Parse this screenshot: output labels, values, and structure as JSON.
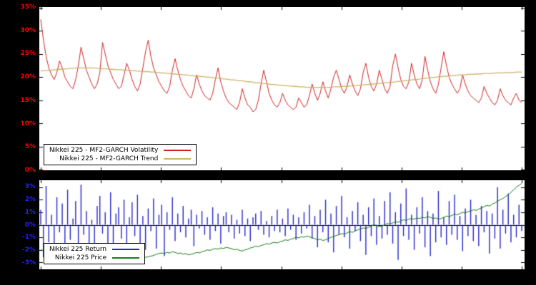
{
  "figure": {
    "background": "#000000",
    "plot_background": "#ffffff"
  },
  "chart_data": [
    {
      "type": "line",
      "panel": "volatility",
      "ylim": [
        0,
        35
      ],
      "axis_color": "#ff0000",
      "grid": false,
      "legend_position": "bottom-left",
      "yticks": [
        {
          "value": 0,
          "label": "0%"
        },
        {
          "value": 5,
          "label": "5%"
        },
        {
          "value": 10,
          "label": "10%"
        },
        {
          "value": 15,
          "label": "15%"
        },
        {
          "value": 20,
          "label": "20%"
        },
        {
          "value": 25,
          "label": "25%"
        },
        {
          "value": 30,
          "label": "30%"
        },
        {
          "value": 35,
          "label": "35%"
        }
      ],
      "series": [
        {
          "name": "Nikkei 225 - MF2-GARCH Volatility",
          "style": "line",
          "color": "#d02525",
          "width": 1,
          "values": [
            32.5,
            28,
            24.5,
            22,
            20.5,
            19.5,
            21,
            23.5,
            22,
            20,
            19,
            18,
            17.5,
            19.5,
            22.5,
            26.5,
            24,
            21.5,
            20,
            18.5,
            17.5,
            18.5,
            21,
            27.5,
            25,
            22.5,
            21,
            19.5,
            18.5,
            17.5,
            18,
            20.5,
            23,
            21.5,
            19.5,
            18,
            17,
            18.5,
            22,
            25.5,
            28,
            24.5,
            22,
            20.5,
            19,
            18,
            17,
            16.5,
            18,
            21.5,
            24,
            21.5,
            19.5,
            18,
            17,
            16,
            15.5,
            17.5,
            20.5,
            18.5,
            17,
            16,
            15.5,
            15,
            16.5,
            19.5,
            22,
            19,
            17,
            15.5,
            14.5,
            14,
            13.5,
            13,
            14.5,
            17.5,
            15.5,
            14,
            13.5,
            12.5,
            13,
            15,
            18.5,
            21.5,
            19,
            16.5,
            15,
            14,
            13.5,
            14.5,
            16.5,
            15,
            14,
            13.5,
            13,
            13.5,
            15.5,
            14.5,
            13.5,
            14,
            16,
            18.5,
            16.5,
            15,
            16.5,
            19,
            17,
            15.5,
            17.5,
            20,
            21.5,
            19.5,
            17.5,
            16.5,
            18,
            20.5,
            18.5,
            17,
            16,
            17.5,
            21,
            23,
            20,
            18,
            17,
            18.5,
            21.5,
            19.5,
            17.5,
            16.5,
            18,
            22.5,
            25,
            22,
            19.5,
            18,
            17.5,
            19,
            23,
            20.5,
            18.5,
            17.5,
            19.5,
            24.5,
            21.5,
            19,
            17.5,
            16.5,
            18.5,
            22,
            25.5,
            22.5,
            20,
            18.5,
            17.5,
            16.5,
            17.5,
            20.5,
            18.5,
            17,
            16,
            15.5,
            15,
            14.5,
            15.5,
            18,
            16.5,
            15.5,
            14.5,
            14,
            15,
            17.5,
            16,
            15,
            14.5,
            14,
            15.5,
            16.5,
            15,
            14.5
          ]
        },
        {
          "name": "Nikkei 225 - MF2-GARCH Trend",
          "style": "line",
          "color": "#cdb36b",
          "width": 1.3,
          "values": [
            21.3,
            21.4,
            21.4,
            21.5,
            21.5,
            21.6,
            21.6,
            21.7,
            21.7,
            21.8,
            21.8,
            21.9,
            21.9,
            22,
            22,
            22,
            22,
            22,
            22,
            22,
            22,
            21.9,
            21.9,
            21.8,
            21.8,
            21.8,
            21.7,
            21.7,
            21.6,
            21.6,
            21.6,
            21.5,
            21.5,
            21.5,
            21.4,
            21.4,
            21.3,
            21.3,
            21.2,
            21.2,
            21.2,
            21.1,
            21.1,
            21,
            21,
            20.9,
            20.9,
            20.8,
            20.8,
            20.7,
            20.7,
            20.6,
            20.6,
            20.5,
            20.5,
            20.4,
            20.4,
            20.3,
            20.2,
            20.2,
            20.1,
            20.1,
            20,
            20,
            19.9,
            19.8,
            19.8,
            19.7,
            19.6,
            19.6,
            19.5,
            19.4,
            19.4,
            19.3,
            19.2,
            19.2,
            19.1,
            19,
            19,
            18.9,
            18.8,
            18.8,
            18.7,
            18.6,
            18.6,
            18.5,
            18.4,
            18.4,
            18.3,
            18.3,
            18.2,
            18.2,
            18.1,
            18.1,
            18,
            18,
            17.9,
            17.9,
            17.9,
            17.8,
            17.8,
            17.8,
            17.8,
            17.8,
            17.8,
            17.8,
            17.8,
            17.8,
            17.8,
            17.9,
            17.9,
            17.9,
            18,
            18,
            18,
            18.1,
            18.1,
            18.2,
            18.2,
            18.3,
            18.3,
            18.4,
            18.4,
            18.5,
            18.5,
            18.6,
            18.6,
            18.7,
            18.8,
            18.8,
            18.9,
            18.9,
            19,
            19.1,
            19.1,
            19.2,
            19.3,
            19.3,
            19.4,
            19.5,
            19.5,
            19.6,
            19.7,
            19.7,
            19.8,
            19.9,
            19.9,
            20,
            20.1,
            20.1,
            20.2,
            20.2,
            20.3,
            20.3,
            20.4,
            20.4,
            20.5,
            20.5,
            20.5,
            20.6,
            20.6,
            20.6,
            20.7,
            20.7,
            20.7,
            20.8,
            20.8,
            20.8,
            20.8,
            20.9,
            20.9,
            20.9,
            20.9,
            21,
            21,
            21,
            21,
            21.1,
            21.1,
            21.1
          ]
        }
      ]
    },
    {
      "type": "bar",
      "panel": "returns",
      "ylim": [
        -3.5,
        3.5
      ],
      "axis_color": "#2222ff",
      "grid": false,
      "legend_position": "bottom-left",
      "zero_line": true,
      "yticks": [
        {
          "value": -3,
          "label": "-3%"
        },
        {
          "value": -2,
          "label": "-2%"
        },
        {
          "value": -1,
          "label": "-1%"
        },
        {
          "value": 0,
          "label": "0%"
        },
        {
          "value": 1,
          "label": "1%"
        },
        {
          "value": 2,
          "label": "2%"
        },
        {
          "value": 3,
          "label": "3%"
        }
      ],
      "series": [
        {
          "name": "Nikkei 225 Return",
          "style": "bars",
          "color": "#2727cc",
          "values": [
            1.2,
            -2.6,
            3.1,
            -1.4,
            0.8,
            -3,
            2.2,
            -0.6,
            1.7,
            -2.1,
            2.8,
            -1.2,
            0.5,
            1.9,
            -2.4,
            3.2,
            -0.8,
            1.1,
            -1.8,
            0.4,
            -2.9,
            1.5,
            2.3,
            -0.7,
            1,
            -1.6,
            2.6,
            -2.2,
            0.9,
            1.4,
            -1.1,
            2,
            -2.7,
            0.6,
            1.8,
            -0.9,
            2.4,
            -1.5,
            0.7,
            -2,
            1.3,
            -0.5,
            2.1,
            -1.9,
            0.8,
            1.6,
            -2.5,
            1,
            -0.4,
            2.2,
            -1.3,
            0.9,
            -0.6,
            1.5,
            -1,
            0.5,
            1.2,
            -1.7,
            0.8,
            -0.3,
            1.1,
            -0.8,
            0.6,
            -1.2,
            1.4,
            -0.5,
            0.9,
            -1.5,
            0.7,
            1,
            -0.6,
            0.8,
            -1.1,
            0.4,
            -0.7,
            1.2,
            -0.9,
            0.5,
            -1.3,
            0.6,
            0.9,
            -0.4,
            1.1,
            -0.8,
            0.3,
            -1,
            0.7,
            -0.5,
            1.2,
            -0.6,
            0.5,
            -0.9,
            1.3,
            -0.4,
            0.8,
            -1.2,
            0.6,
            -0.7,
            1,
            -0.3,
            1.6,
            -1.1,
            0.7,
            -1.8,
            1.2,
            -0.6,
            2,
            -1.4,
            0.9,
            -2.2,
            1.5,
            -0.8,
            2.3,
            -1,
            0.6,
            -1.9,
            1.1,
            -0.5,
            1.8,
            -1.3,
            0.8,
            -2.4,
            1.4,
            -0.9,
            2.1,
            -1.6,
            0.7,
            -1.1,
            1.9,
            -0.8,
            2.6,
            -1.5,
            1,
            -2.8,
            1.7,
            -0.9,
            2.9,
            -1.2,
            0.8,
            -2,
            1.4,
            -0.7,
            2.2,
            -1.8,
            1.1,
            -2.5,
            0.9,
            -1.4,
            2.7,
            -1,
            0.6,
            -1.6,
            1.9,
            -0.8,
            2.4,
            -1.2,
            0.7,
            -2.1,
            1.3,
            -0.9,
            2,
            -1.3,
            0.8,
            -1.7,
            1.5,
            -0.6,
            1.1,
            -2.3,
            0.9,
            -1.1,
            3,
            -1.9,
            1.2,
            -0.7,
            2.5,
            -1.4,
            0.8,
            -1,
            1.6,
            -0.5
          ]
        },
        {
          "name": "Nikkei 225 Price",
          "style": "line",
          "color": "#127d12",
          "width": 1,
          "values": [
            -2,
            -2.05,
            -2.1,
            -2.2,
            -2.15,
            -2.25,
            -2.3,
            -2.35,
            -2.3,
            -2.4,
            -2.45,
            -2.4,
            -2.5,
            -2.55,
            -2.6,
            -2.65,
            -2.6,
            -2.7,
            -2.65,
            -2.7,
            -2.75,
            -2.7,
            -2.65,
            -2.6,
            -2.5,
            -2.45,
            -2.4,
            -2.35,
            -2.4,
            -2.3,
            -2.35,
            -2.3,
            -2.4,
            -2.45,
            -2.5,
            -2.55,
            -2.5,
            -2.6,
            -2.55,
            -2.6,
            -2.55,
            -2.5,
            -2.45,
            -2.35,
            -2.3,
            -2.25,
            -2.3,
            -2.2,
            -2.25,
            -2.15,
            -2.2,
            -2.3,
            -2.25,
            -2.35,
            -2.3,
            -2.4,
            -2.35,
            -2.3,
            -2.2,
            -2.25,
            -2.15,
            -2.1,
            -2,
            -2.05,
            -1.95,
            -1.9,
            -1.95,
            -1.85,
            -1.9,
            -1.8,
            -1.85,
            -1.9,
            -2,
            -1.95,
            -2.05,
            -2.1,
            -2,
            -1.95,
            -1.85,
            -1.8,
            -1.7,
            -1.75,
            -1.65,
            -1.6,
            -1.5,
            -1.55,
            -1.45,
            -1.4,
            -1.45,
            -1.35,
            -1.3,
            -1.2,
            -1.25,
            -1.15,
            -1.1,
            -1,
            -1.05,
            -0.95,
            -1,
            -0.9,
            -0.95,
            -1.05,
            -1.1,
            -1.2,
            -1.15,
            -1.25,
            -1.2,
            -1.1,
            -1,
            -0.95,
            -0.85,
            -0.8,
            -0.7,
            -0.75,
            -0.65,
            -0.55,
            -0.6,
            -0.5,
            -0.4,
            -0.35,
            -0.25,
            -0.3,
            -0.2,
            -0.1,
            0,
            -0.05,
            -0.15,
            -0.1,
            0,
            0.1,
            0.05,
            0.15,
            0.25,
            0.2,
            0.3,
            0.4,
            0.35,
            0.45,
            0.5,
            0.45,
            0.55,
            0.5,
            0.6,
            0.55,
            0.65,
            0.6,
            0.5,
            0.55,
            0.45,
            0.5,
            0.6,
            0.7,
            0.65,
            0.75,
            0.85,
            0.8,
            0.9,
            1,
            0.95,
            1.05,
            1.1,
            1.2,
            1.15,
            1.25,
            1.35,
            1.45,
            1.55,
            1.5,
            1.65,
            1.75,
            1.9,
            2,
            2.1,
            2.25,
            2.4,
            2.6,
            2.8,
            3,
            3.15,
            3.3
          ]
        }
      ]
    }
  ]
}
